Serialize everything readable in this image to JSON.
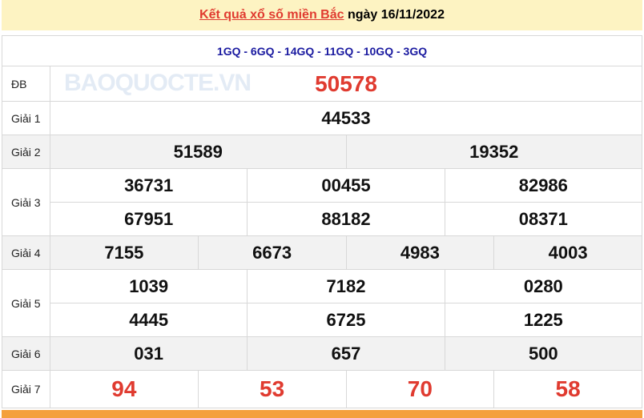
{
  "header": {
    "title_link": "Kết quả xổ số miền Bắc",
    "date_text": "ngày 16/11/2022"
  },
  "codes": "1GQ - 6GQ - 14GQ - 11GQ - 10GQ - 3GQ",
  "prizes": [
    {
      "label": "ĐB",
      "rows": [
        [
          "50578"
        ]
      ]
    },
    {
      "label": "Giải 1",
      "rows": [
        [
          "44533"
        ]
      ]
    },
    {
      "label": "Giải 2",
      "rows": [
        [
          "51589",
          "19352"
        ]
      ]
    },
    {
      "label": "Giải 3",
      "rows": [
        [
          "36731",
          "00455",
          "82986"
        ],
        [
          "67951",
          "88182",
          "08371"
        ]
      ]
    },
    {
      "label": "Giải 4",
      "rows": [
        [
          "7155",
          "6673",
          "4983",
          "4003"
        ]
      ]
    },
    {
      "label": "Giải 5",
      "rows": [
        [
          "1039",
          "7182",
          "0280"
        ],
        [
          "4445",
          "6725",
          "1225"
        ]
      ]
    },
    {
      "label": "Giải 6",
      "rows": [
        [
          "031",
          "657",
          "500"
        ]
      ]
    },
    {
      "label": "Giải 7",
      "rows": [
        [
          "94",
          "53",
          "70",
          "58"
        ]
      ]
    }
  ],
  "watermark": "BAOQUOCTE.VN",
  "colors": {
    "accent_red": "#e03b30",
    "code_blue": "#1a1aa0",
    "header_bg": "#fdf3c2",
    "footer_orange": "#f4a03c"
  }
}
